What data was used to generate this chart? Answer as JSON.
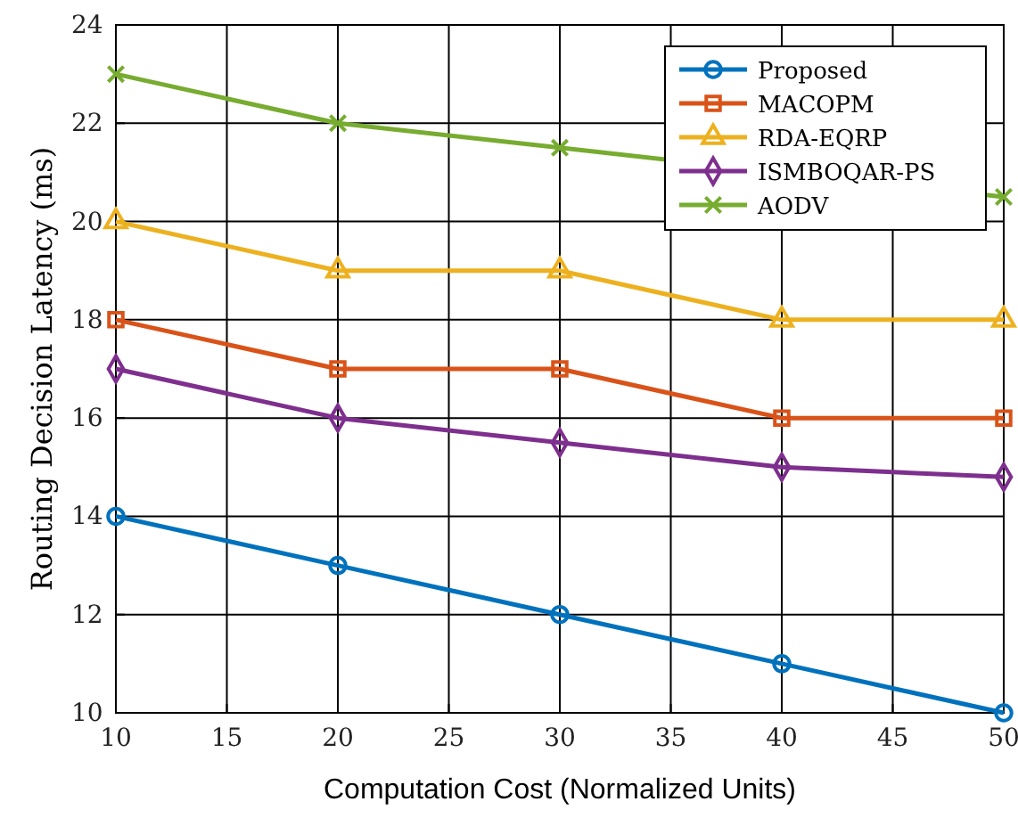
{
  "chart_data": {
    "type": "line",
    "xlabel": "Computation Cost (Normalized Units)",
    "ylabel": "Routing Decision Latency (ms)",
    "x": [
      10,
      20,
      30,
      40,
      50
    ],
    "series": [
      {
        "name": "Proposed",
        "color": "#0072bd",
        "marker": "circle",
        "values": [
          14,
          13,
          12,
          11,
          10
        ]
      },
      {
        "name": "MACOPM",
        "color": "#d95319",
        "marker": "square",
        "values": [
          18,
          17,
          17,
          16,
          16
        ]
      },
      {
        "name": "RDA-EQRP",
        "color": "#edb120",
        "marker": "triangle",
        "values": [
          20,
          19,
          19,
          18,
          18
        ]
      },
      {
        "name": "ISMBOQAR-PS",
        "color": "#7e2f8e",
        "marker": "diamond",
        "values": [
          17,
          16,
          15.5,
          15,
          14.8
        ]
      },
      {
        "name": "AODV",
        "color": "#77ac30",
        "marker": "cross",
        "values": [
          23,
          22,
          21.5,
          null,
          20.5
        ]
      }
    ],
    "xlim": [
      10,
      50
    ],
    "xticks": [
      10,
      15,
      20,
      25,
      30,
      35,
      40,
      45,
      50
    ],
    "ylim": [
      10,
      24
    ],
    "yticks": [
      10,
      12,
      14,
      16,
      18,
      20,
      22,
      24
    ],
    "grid": true,
    "legend": "top right",
    "line_style": "solid"
  }
}
